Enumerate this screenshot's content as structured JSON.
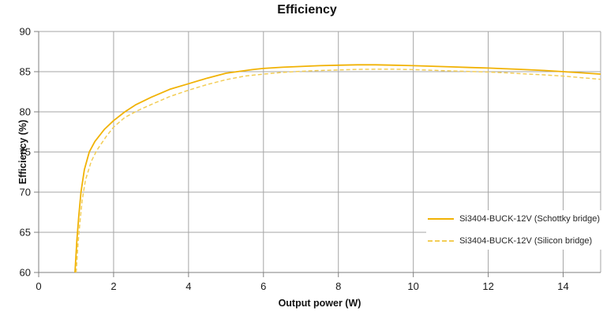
{
  "chart_data": {
    "type": "line",
    "title": "Efficiency",
    "xlabel": "Output power (W)",
    "ylabel": "Efficiency (%)",
    "xlim": [
      0,
      15
    ],
    "ylim": [
      60,
      90
    ],
    "x_ticks": [
      0,
      2,
      4,
      6,
      8,
      10,
      12,
      14
    ],
    "y_ticks": [
      60,
      65,
      70,
      75,
      80,
      85,
      90
    ],
    "grid": true,
    "legend_position": "inside-bottom-right",
    "colors": {
      "gridline": "#a6a6a6",
      "axis": "#7f7f7f",
      "tick_text": "#1a1a1a"
    },
    "series": [
      {
        "name": "Si3404-BUCK-12V (Schottky bridge)",
        "style": "solid",
        "color": "#f1b204",
        "points": [
          [
            0.97,
            60
          ],
          [
            1.02,
            64
          ],
          [
            1.07,
            67
          ],
          [
            1.13,
            70
          ],
          [
            1.22,
            72.8
          ],
          [
            1.35,
            75
          ],
          [
            1.5,
            76.3
          ],
          [
            1.75,
            77.8
          ],
          [
            2,
            78.9
          ],
          [
            2.3,
            80
          ],
          [
            2.6,
            80.9
          ],
          [
            3,
            81.8
          ],
          [
            3.5,
            82.8
          ],
          [
            4,
            83.5
          ],
          [
            4.5,
            84.2
          ],
          [
            5,
            84.8
          ],
          [
            5.3,
            85
          ],
          [
            5.7,
            85.25
          ],
          [
            6,
            85.4
          ],
          [
            6.5,
            85.55
          ],
          [
            7,
            85.65
          ],
          [
            7.5,
            85.75
          ],
          [
            8,
            85.8
          ],
          [
            8.5,
            85.85
          ],
          [
            9,
            85.85
          ],
          [
            9.5,
            85.8
          ],
          [
            10,
            85.75
          ],
          [
            10.5,
            85.68
          ],
          [
            11,
            85.6
          ],
          [
            11.5,
            85.52
          ],
          [
            12,
            85.45
          ],
          [
            12.5,
            85.35
          ],
          [
            13,
            85.25
          ],
          [
            13.5,
            85.15
          ],
          [
            14,
            85
          ],
          [
            14.5,
            84.85
          ],
          [
            15,
            84.7
          ]
        ]
      },
      {
        "name": "Si3404-BUCK-12V (Silicon bridge)",
        "style": "dashed",
        "color": "#f3cd55",
        "points": [
          [
            1.0,
            60
          ],
          [
            1.05,
            63.5
          ],
          [
            1.1,
            66.2
          ],
          [
            1.16,
            69
          ],
          [
            1.25,
            71.5
          ],
          [
            1.4,
            73.8
          ],
          [
            1.55,
            75.2
          ],
          [
            1.8,
            76.9
          ],
          [
            2,
            78.1
          ],
          [
            2.3,
            79.3
          ],
          [
            2.66,
            80.2
          ],
          [
            3,
            80.9
          ],
          [
            3.5,
            81.9
          ],
          [
            4,
            82.7
          ],
          [
            4.5,
            83.4
          ],
          [
            5,
            84
          ],
          [
            5.5,
            84.45
          ],
          [
            6,
            84.7
          ],
          [
            6.5,
            84.9
          ],
          [
            7,
            85.05
          ],
          [
            7.5,
            85.15
          ],
          [
            8,
            85.22
          ],
          [
            8.5,
            85.28
          ],
          [
            9,
            85.3
          ],
          [
            9.5,
            85.3
          ],
          [
            10,
            85.25
          ],
          [
            10.5,
            85.18
          ],
          [
            11,
            85.1
          ],
          [
            11.5,
            85.02
          ],
          [
            12,
            84.95
          ],
          [
            12.5,
            84.85
          ],
          [
            13,
            84.72
          ],
          [
            13.5,
            84.6
          ],
          [
            14,
            84.45
          ],
          [
            14.5,
            84.25
          ],
          [
            15,
            84.05
          ]
        ]
      }
    ]
  }
}
